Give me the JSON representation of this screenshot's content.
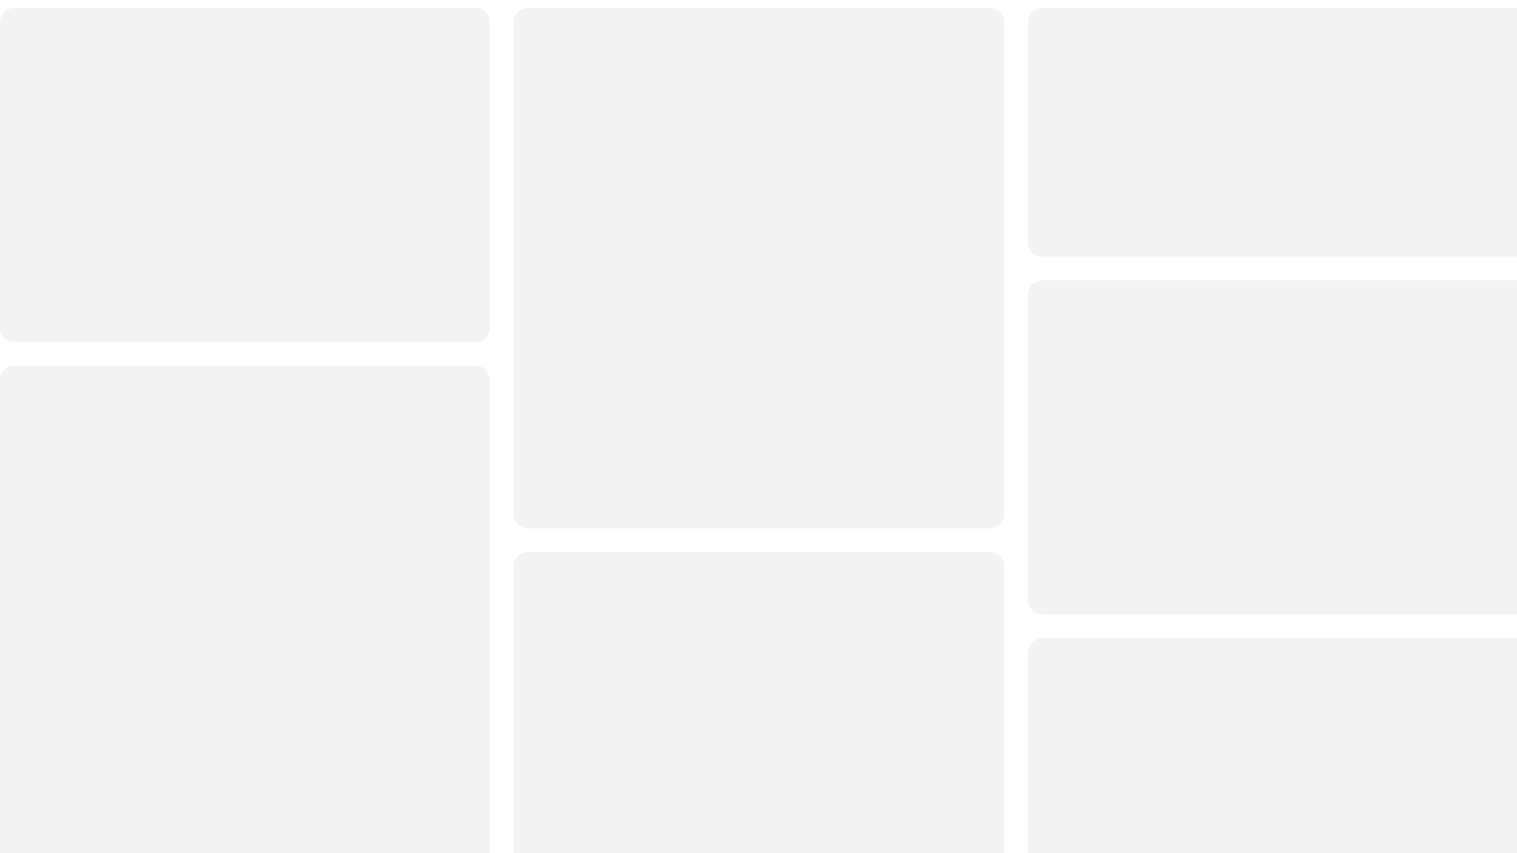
{
  "theme": {
    "background": "#ffffff",
    "tile_color": "#f3f3f3"
  },
  "grid": {
    "columns": [
      {
        "tiles": [
          {
            "state": "placeholder"
          },
          {
            "state": "placeholder"
          }
        ]
      },
      {
        "tiles": [
          {
            "state": "placeholder"
          },
          {
            "state": "placeholder"
          }
        ]
      },
      {
        "tiles": [
          {
            "state": "placeholder"
          },
          {
            "state": "placeholder"
          },
          {
            "state": "placeholder"
          }
        ]
      }
    ]
  }
}
